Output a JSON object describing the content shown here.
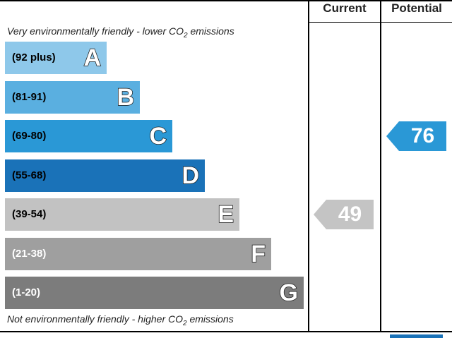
{
  "header": {
    "current_label": "Current",
    "potential_label": "Potential"
  },
  "captions": {
    "top_prefix": "Very environmentally friendly - lower C",
    "top_o2": "O",
    "top_sub": "2",
    "top_suffix": " emissions",
    "bottom_prefix": "Not environmentally friendly - higher C",
    "bottom_o2": "O",
    "bottom_sub": "2",
    "bottom_suffix": " emissions"
  },
  "chart_data": {
    "type": "bar",
    "bands": [
      {
        "range": "(92 plus)",
        "letter": "A",
        "color": "#8ec8ea",
        "text_color": "#000000"
      },
      {
        "range": "(81-91)",
        "letter": "B",
        "color": "#5aafe0",
        "text_color": "#000000"
      },
      {
        "range": "(69-80)",
        "letter": "C",
        "color": "#2a98d6",
        "text_color": "#000000"
      },
      {
        "range": "(55-68)",
        "letter": "D",
        "color": "#1a72b8",
        "text_color": "#000000"
      },
      {
        "range": "(39-54)",
        "letter": "E",
        "color": "#c2c2c2",
        "text_color": "#000000"
      },
      {
        "range": "(21-38)",
        "letter": "F",
        "color": "#9f9f9f",
        "text_color": "#ffffff"
      },
      {
        "range": "(1-20)",
        "letter": "G",
        "color": "#7c7c7c",
        "text_color": "#ffffff"
      }
    ],
    "current": {
      "value": "49",
      "band": "E",
      "color": "#c4c4c4"
    },
    "potential": {
      "value": "76",
      "band": "C",
      "color": "#2a98d6"
    }
  }
}
